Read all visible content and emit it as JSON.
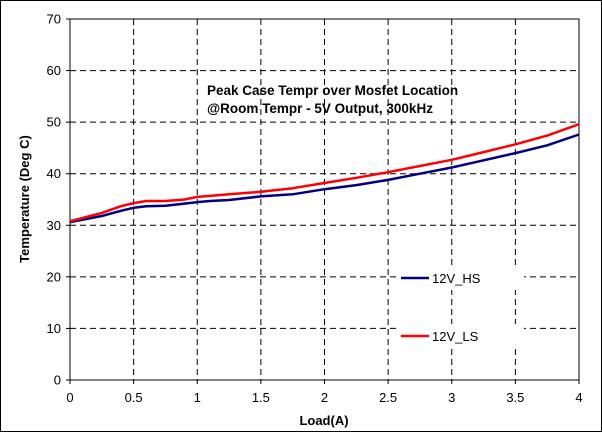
{
  "chart_data": {
    "type": "line",
    "title_lines": [
      "Peak Case Tempr over Mosfet Location",
      "@Room Tempr - 5V Output, 300kHz"
    ],
    "xlabel": "Load(A)",
    "ylabel": "Temperature (Deg C)",
    "xlim": [
      0,
      4
    ],
    "ylim": [
      0,
      70
    ],
    "x_ticks": [
      0,
      0.5,
      1,
      1.5,
      2,
      2.5,
      3,
      3.5,
      4
    ],
    "x_tick_labels": [
      "0",
      "0.5",
      "1",
      "1.5",
      "2",
      "2.5",
      "3",
      "3.5",
      "4"
    ],
    "y_ticks": [
      0,
      10,
      20,
      30,
      40,
      50,
      60,
      70
    ],
    "y_tick_labels": [
      "0",
      "10",
      "20",
      "30",
      "40",
      "50",
      "60",
      "70"
    ],
    "grid": "dashed",
    "legend_position": "right",
    "series": [
      {
        "name": "12V_HS",
        "color": "#000080",
        "x": [
          0,
          0.25,
          0.4,
          0.5,
          0.6,
          0.75,
          0.9,
          1.0,
          1.1,
          1.25,
          1.5,
          1.75,
          2.0,
          2.25,
          2.5,
          2.75,
          3.0,
          3.25,
          3.5,
          3.75,
          4.0
        ],
        "y": [
          30.6,
          31.8,
          32.8,
          33.4,
          33.7,
          33.8,
          34.2,
          34.5,
          34.7,
          34.9,
          35.6,
          36.0,
          37.0,
          37.8,
          38.8,
          40.0,
          41.2,
          42.6,
          44.0,
          45.5,
          47.6
        ]
      },
      {
        "name": "12V_LS",
        "color": "#ff0000",
        "x": [
          0,
          0.25,
          0.4,
          0.5,
          0.6,
          0.75,
          0.9,
          1.0,
          1.1,
          1.25,
          1.5,
          1.75,
          2.0,
          2.25,
          2.5,
          2.75,
          3.0,
          3.25,
          3.5,
          3.75,
          4.0
        ],
        "y": [
          30.8,
          32.4,
          33.7,
          34.3,
          34.7,
          34.7,
          35.0,
          35.5,
          35.7,
          36.0,
          36.5,
          37.2,
          38.2,
          39.2,
          40.3,
          41.5,
          42.7,
          44.2,
          45.7,
          47.4,
          49.6
        ]
      }
    ]
  }
}
